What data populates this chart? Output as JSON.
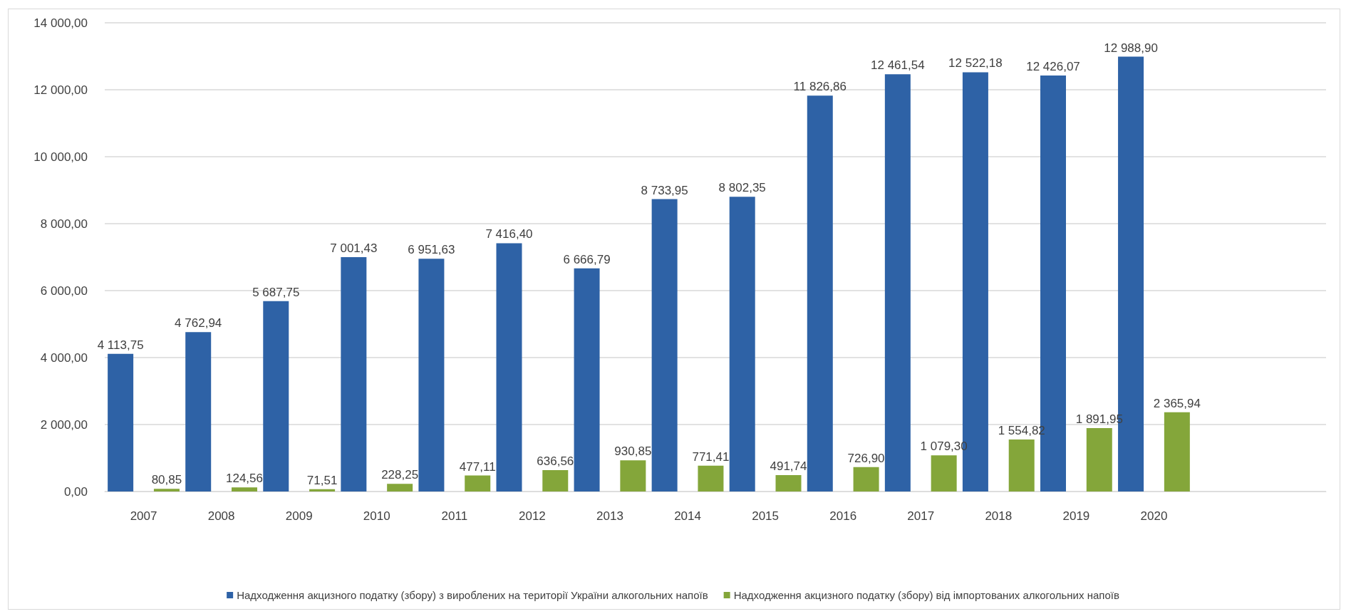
{
  "chart_data": {
    "type": "bar",
    "categories": [
      "2007",
      "2008",
      "2009",
      "2010",
      "2011",
      "2012",
      "2013",
      "2014",
      "2015",
      "2016",
      "2017",
      "2018",
      "2019",
      "2020"
    ],
    "series": [
      {
        "name": "Надходження акцизного податку (збору) з вироблених на території України алкогольних напоїв",
        "color": "#2e62a6",
        "values": [
          4113.75,
          4762.94,
          5687.75,
          7001.43,
          6951.63,
          7416.4,
          6666.79,
          8733.95,
          8802.35,
          11826.86,
          12461.54,
          12522.18,
          12426.07,
          12988.9
        ],
        "value_labels": [
          "4 113,75",
          "4 762,94",
          "5 687,75",
          "7 001,43",
          "6 951,63",
          "7 416,40",
          "6 666,79",
          "8 733,95",
          "8 802,35",
          "11 826,86",
          "12 461,54",
          "12 522,18",
          "12 426,07",
          "12 988,90"
        ]
      },
      {
        "name": "Надходження акцизного податку (збору) від імпортованих алкогольних напоїв",
        "color": "#84a63a",
        "values": [
          80.85,
          124.56,
          71.51,
          228.25,
          477.11,
          636.56,
          930.85,
          771.41,
          491.74,
          726.9,
          1079.3,
          1554.82,
          1891.95,
          2365.94
        ],
        "value_labels": [
          "80,85",
          "124,56",
          "71,51",
          "228,25",
          "477,11",
          "636,56",
          "930,85",
          "771,41",
          "491,74",
          "726,90",
          "1 079,30",
          "1 554,82",
          "1 891,95",
          "2 365,94"
        ]
      }
    ],
    "ylim": [
      0,
      14000
    ],
    "yticks": [
      {
        "value": 0,
        "label": "0,00"
      },
      {
        "value": 2000,
        "label": "2 000,00"
      },
      {
        "value": 4000,
        "label": "4 000,00"
      },
      {
        "value": 6000,
        "label": "6 000,00"
      },
      {
        "value": 8000,
        "label": "8 000,00"
      },
      {
        "value": 10000,
        "label": "10 000,00"
      },
      {
        "value": 12000,
        "label": "12 000,00"
      },
      {
        "value": 14000,
        "label": "14 000,00"
      }
    ],
    "grid": "y",
    "legend": "bottom"
  }
}
